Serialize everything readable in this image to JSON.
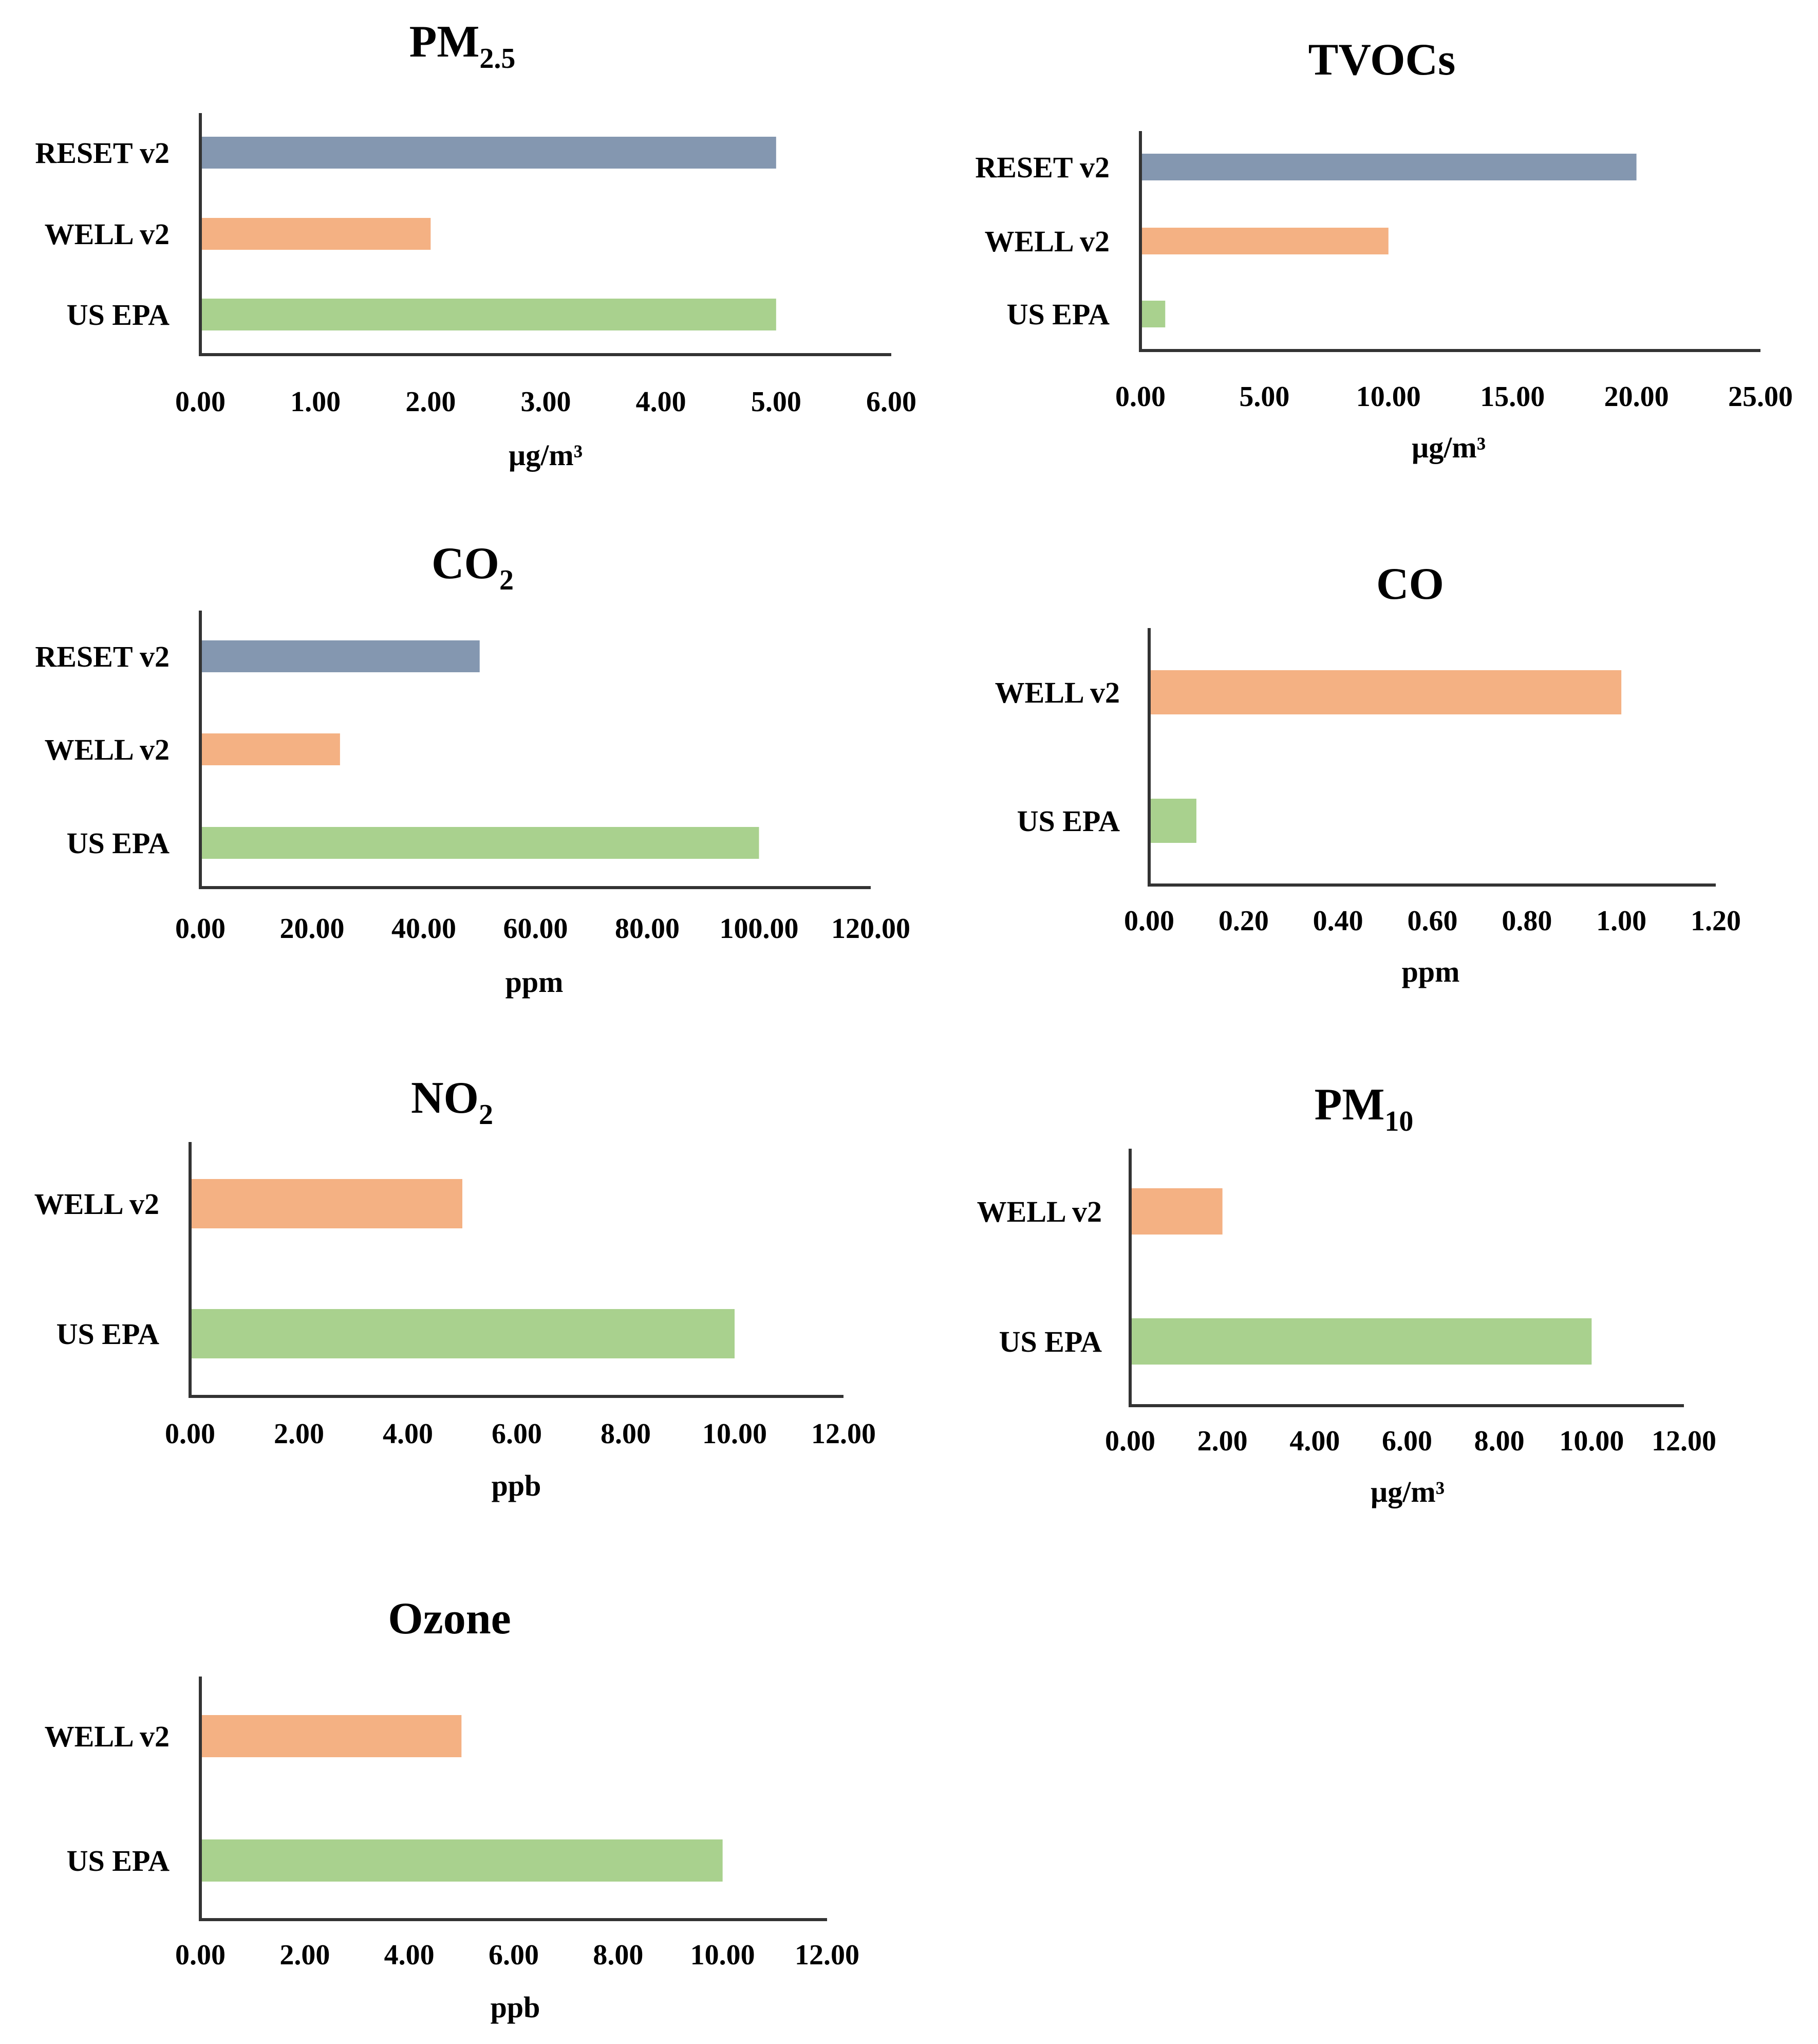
{
  "colors": {
    "RESET v2": "#8497b0",
    "WELL v2": "#f4b183",
    "US EPA": "#a9d18e"
  },
  "chart_data": [
    {
      "type": "bar",
      "orientation": "horizontal",
      "title": "PM",
      "title_sub": "2.5",
      "categories": [
        "RESET v2",
        "WELL v2",
        "US EPA"
      ],
      "values": [
        5.0,
        2.0,
        5.0
      ],
      "xlim": [
        0,
        6
      ],
      "ticks": [
        "0.00",
        "1.00",
        "2.00",
        "3.00",
        "4.00",
        "5.00",
        "6.00"
      ],
      "xlabel": "µg/m³"
    },
    {
      "type": "bar",
      "orientation": "horizontal",
      "title": "TVOCs",
      "title_sub": "",
      "categories": [
        "RESET v2",
        "WELL v2",
        "US EPA"
      ],
      "values": [
        20.0,
        10.0,
        1.0
      ],
      "xlim": [
        0,
        25
      ],
      "ticks": [
        "0.00",
        "5.00",
        "10.00",
        "15.00",
        "20.00",
        "25.00"
      ],
      "xlabel": "µg/m³"
    },
    {
      "type": "bar",
      "orientation": "horizontal",
      "title": "CO",
      "title_sub": "2",
      "categories": [
        "RESET v2",
        "WELL v2",
        "US EPA"
      ],
      "values": [
        50.0,
        25.0,
        100.0
      ],
      "xlim": [
        0,
        120
      ],
      "ticks": [
        "0.00",
        "20.00",
        "40.00",
        "60.00",
        "80.00",
        "100.00",
        "120.00"
      ],
      "xlabel": "ppm"
    },
    {
      "type": "bar",
      "orientation": "horizontal",
      "title": "CO",
      "title_sub": "",
      "categories": [
        "WELL v2",
        "US EPA"
      ],
      "values": [
        1.0,
        0.1
      ],
      "xlim": [
        0,
        1.2
      ],
      "ticks": [
        "0.00",
        "0.20",
        "0.40",
        "0.60",
        "0.80",
        "1.00",
        "1.20"
      ],
      "xlabel": "ppm"
    },
    {
      "type": "bar",
      "orientation": "horizontal",
      "title": "NO",
      "title_sub": "2",
      "categories": [
        "WELL v2",
        "US EPA"
      ],
      "values": [
        5.0,
        10.0
      ],
      "xlim": [
        0,
        12
      ],
      "ticks": [
        "0.00",
        "2.00",
        "4.00",
        "6.00",
        "8.00",
        "10.00",
        "12.00"
      ],
      "xlabel": "ppb"
    },
    {
      "type": "bar",
      "orientation": "horizontal",
      "title": "PM",
      "title_sub": "10",
      "categories": [
        "WELL v2",
        "US EPA"
      ],
      "values": [
        2.0,
        10.0
      ],
      "xlim": [
        0,
        12
      ],
      "ticks": [
        "0.00",
        "2.00",
        "4.00",
        "6.00",
        "8.00",
        "10.00",
        "12.00"
      ],
      "xlabel": "µg/m³"
    },
    {
      "type": "bar",
      "orientation": "horizontal",
      "title": "Ozone",
      "title_sub": "",
      "categories": [
        "WELL v2",
        "US EPA"
      ],
      "values": [
        5.0,
        10.0
      ],
      "xlim": [
        0,
        12
      ],
      "ticks": [
        "0.00",
        "2.00",
        "4.00",
        "6.00",
        "8.00",
        "10.00",
        "12.00"
      ],
      "xlabel": "ppb"
    }
  ]
}
